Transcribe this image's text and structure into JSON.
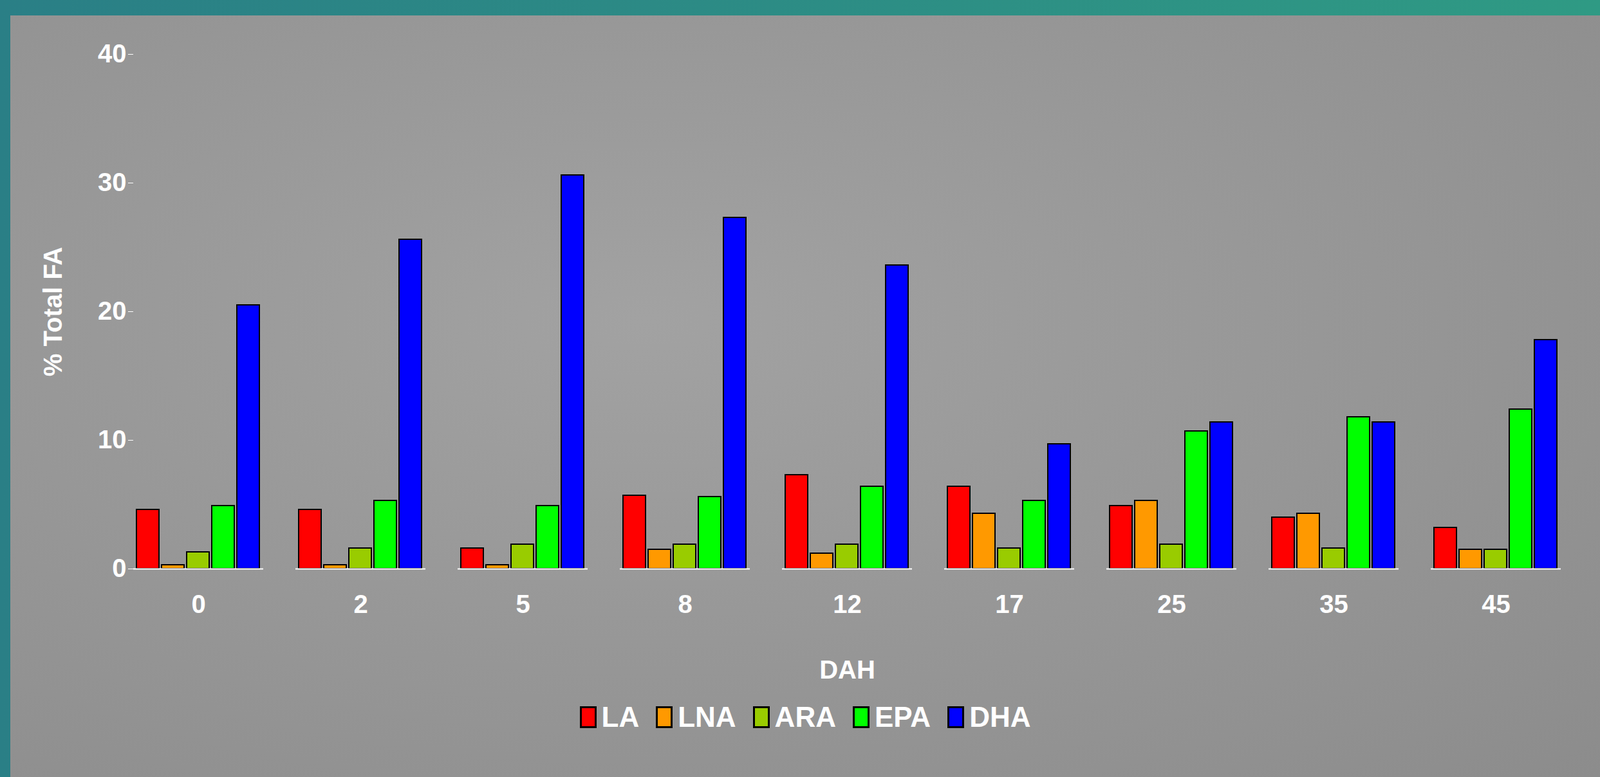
{
  "chart_data": {
    "type": "bar",
    "x_label": "DAH",
    "y_label": "% Total FA",
    "categories": [
      "0",
      "2",
      "5",
      "8",
      "12",
      "17",
      "25",
      "35",
      "45"
    ],
    "series": [
      {
        "name": "LA",
        "color": "#ff0000",
        "values": [
          4.6,
          4.6,
          1.6,
          5.7,
          7.3,
          6.4,
          4.9,
          4.0,
          3.2
        ]
      },
      {
        "name": "LNA",
        "color": "#ff9900",
        "values": [
          0.3,
          0.3,
          0.3,
          1.5,
          1.2,
          4.3,
          5.3,
          4.3,
          1.5
        ]
      },
      {
        "name": "ARA",
        "color": "#99cc00",
        "values": [
          1.3,
          1.6,
          1.9,
          1.9,
          1.9,
          1.6,
          1.9,
          1.6,
          1.5
        ]
      },
      {
        "name": "EPA",
        "color": "#00ff00",
        "values": [
          4.9,
          5.3,
          4.9,
          5.6,
          6.4,
          5.3,
          10.7,
          11.8,
          12.4
        ]
      },
      {
        "name": "DHA",
        "color": "#0000ff",
        "values": [
          20.5,
          25.6,
          30.6,
          27.3,
          23.6,
          9.7,
          11.4,
          11.4,
          17.8
        ]
      }
    ],
    "ylim": [
      0,
      40
    ],
    "yticks": [
      0,
      10,
      20,
      30,
      40
    ],
    "grid": false,
    "legend": "bottom"
  }
}
